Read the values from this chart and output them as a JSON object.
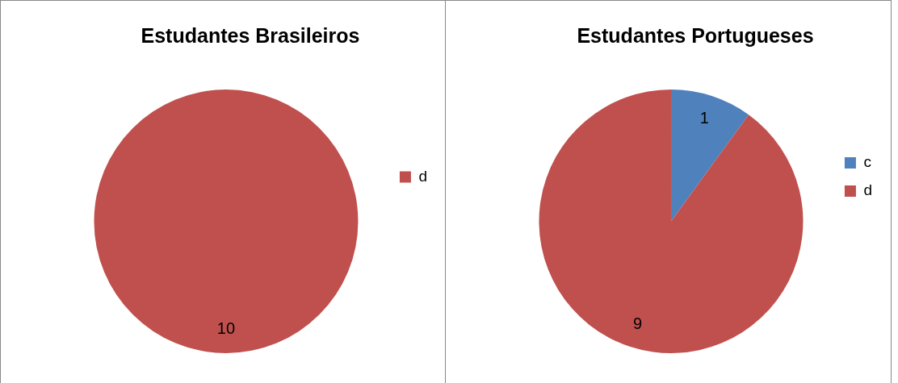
{
  "chart_data": [
    {
      "type": "pie",
      "title": "Estudantes Brasileiros",
      "categories": [
        "d"
      ],
      "values": [
        10
      ],
      "colors": [
        "#c0504d"
      ],
      "data_labels": true,
      "legend": "right"
    },
    {
      "type": "pie",
      "title": "Estudantes Portugueses",
      "categories": [
        "c",
        "d"
      ],
      "values": [
        1,
        9
      ],
      "colors": [
        "#4f81bd",
        "#c0504d"
      ],
      "data_labels": true,
      "legend": "right"
    }
  ]
}
